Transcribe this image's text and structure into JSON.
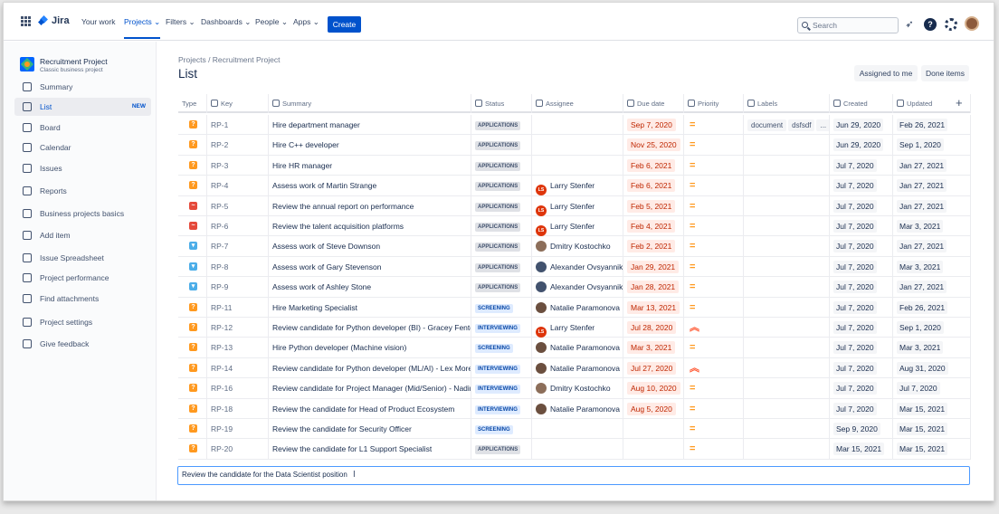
{
  "nav": {
    "logo": "Jira",
    "items": [
      {
        "label": "Your work",
        "active": false
      },
      {
        "label": "Projects ⌄",
        "active": true
      },
      {
        "label": "Filters ⌄",
        "active": false
      },
      {
        "label": "Dashboards ⌄",
        "active": false
      },
      {
        "label": "People ⌄",
        "active": false
      },
      {
        "label": "Apps ⌄",
        "active": false
      }
    ],
    "create_label": "Create",
    "search_placeholder": "Search"
  },
  "sidebar": {
    "project_name": "Recruitment Project",
    "project_type": "Classic business project",
    "items": [
      {
        "label": "Summary",
        "icon": "summary-icon"
      },
      {
        "label": "List",
        "icon": "list-icon",
        "badge": "NEW",
        "active": true
      },
      {
        "label": "Board",
        "icon": "board-icon"
      },
      {
        "label": "Calendar",
        "icon": "calendar-icon"
      },
      {
        "label": "Issues",
        "icon": "issues-icon"
      },
      {
        "label": "Reports",
        "icon": "reports-icon"
      },
      {
        "label": "Business projects basics",
        "icon": "external-link-icon"
      },
      {
        "label": "Add item",
        "icon": "add-item-icon"
      },
      {
        "label": "Issue Spreadsheet",
        "icon": "spreadsheet-icon"
      },
      {
        "label": "Project performance",
        "icon": "performance-icon"
      },
      {
        "label": "Find attachments",
        "icon": "search-icon"
      },
      {
        "label": "Project settings",
        "icon": "gear-icon"
      },
      {
        "label": "Give feedback",
        "icon": "megaphone-icon"
      }
    ]
  },
  "main": {
    "breadcrumb": "Projects  /  Recruitment Project",
    "title": "List",
    "assigned_btn": "Assigned to me",
    "done_btn": "Done items",
    "new_item_value": "Review the candidate for the Data Scientist position"
  },
  "columns": [
    "Type",
    "Key",
    "Summary",
    "Status",
    "Assignee",
    "Due date",
    "Priority",
    "Labels",
    "Created",
    "Updated"
  ],
  "rows": [
    {
      "type": "orange",
      "key": "RP-1",
      "summary": "Hire department manager",
      "status": "APPLICATIONS",
      "assignee": "",
      "av": "",
      "due": "Sep 7, 2020",
      "prio": "medium",
      "labels": [
        "document",
        "dsfsdf",
        "..."
      ],
      "created": "Jun 29, 2020",
      "updated": "Feb 26, 2021"
    },
    {
      "type": "orange",
      "key": "RP-2",
      "summary": "Hire C++ developer",
      "status": "APPLICATIONS",
      "assignee": "",
      "av": "",
      "due": "Nov 25, 2020",
      "prio": "medium",
      "labels": [],
      "created": "Jun 29, 2020",
      "updated": "Sep 1, 2020"
    },
    {
      "type": "orange",
      "key": "RP-3",
      "summary": "Hire HR manager",
      "status": "APPLICATIONS",
      "assignee": "",
      "av": "",
      "due": "Feb 6, 2021",
      "prio": "medium",
      "labels": [],
      "created": "Jul 7, 2020",
      "updated": "Jan 27, 2021"
    },
    {
      "type": "orange",
      "key": "RP-4",
      "summary": "Assess work of Martin Strange",
      "status": "APPLICATIONS",
      "assignee": "Larry Stenfer",
      "av": "ls",
      "due": "Feb 6, 2021",
      "prio": "medium",
      "labels": [],
      "created": "Jul 7, 2020",
      "updated": "Jan 27, 2021"
    },
    {
      "type": "red",
      "key": "RP-5",
      "summary": "Review the annual report on performance",
      "status": "APPLICATIONS",
      "assignee": "Larry Stenfer",
      "av": "ls",
      "due": "Feb 5, 2021",
      "prio": "medium",
      "labels": [],
      "created": "Jul 7, 2020",
      "updated": "Jan 27, 2021"
    },
    {
      "type": "red",
      "key": "RP-6",
      "summary": "Review the talent acquisition platforms",
      "status": "APPLICATIONS",
      "assignee": "Larry Stenfer",
      "av": "ls",
      "due": "Feb 4, 2021",
      "prio": "medium",
      "labels": [],
      "created": "Jul 7, 2020",
      "updated": "Mar 3, 2021"
    },
    {
      "type": "blue",
      "key": "RP-7",
      "summary": "Assess work of Steve Downson",
      "status": "APPLICATIONS",
      "assignee": "Dmitry Kostochko",
      "av": "dk",
      "due": "Feb 2, 2021",
      "prio": "medium",
      "labels": [],
      "created": "Jul 7, 2020",
      "updated": "Jan 27, 2021"
    },
    {
      "type": "blue",
      "key": "RP-8",
      "summary": "Assess work of Gary Stevenson",
      "status": "APPLICATIONS",
      "assignee": "Alexander Ovsyannikov",
      "av": "ao",
      "due": "Jan 29, 2021",
      "prio": "medium",
      "labels": [],
      "created": "Jul 7, 2020",
      "updated": "Mar 3, 2021"
    },
    {
      "type": "blue",
      "key": "RP-9",
      "summary": "Assess work of Ashley Stone",
      "status": "APPLICATIONS",
      "assignee": "Alexander Ovsyannikov",
      "av": "ao",
      "due": "Jan 28, 2021",
      "prio": "medium",
      "labels": [],
      "created": "Jul 7, 2020",
      "updated": "Jan 27, 2021"
    },
    {
      "type": "orange",
      "key": "RP-11",
      "summary": "Hire Marketing Specialist",
      "status": "SCREENING",
      "assignee": "Natalie Paramonova",
      "av": "np",
      "due": "Mar 13, 2021",
      "prio": "medium",
      "labels": [],
      "created": "Jul 7, 2020",
      "updated": "Feb 26, 2021"
    },
    {
      "type": "orange",
      "key": "RP-12",
      "summary": "Review candidate for Python developer (BI) - Gracey Fenton",
      "status": "INTERVIEWING",
      "assignee": "Larry Stenfer",
      "av": "ls",
      "due": "Jul 28, 2020",
      "prio": "high",
      "labels": [],
      "created": "Jul 7, 2020",
      "updated": "Sep 1, 2020"
    },
    {
      "type": "orange",
      "key": "RP-13",
      "summary": "Hire Python developer (Machine vision)",
      "status": "SCREENING",
      "assignee": "Natalie Paramonova",
      "av": "np",
      "due": "Mar 3, 2021",
      "prio": "medium",
      "labels": [],
      "created": "Jul 7, 2020",
      "updated": "Mar 3, 2021"
    },
    {
      "type": "orange",
      "key": "RP-14",
      "summary": "Review candidate for Python developer (ML/AI) - Lex Moreno",
      "status": "INTERVIEWING",
      "assignee": "Natalie Paramonova",
      "av": "np",
      "due": "Jul 27, 2020",
      "prio": "high",
      "labels": [],
      "created": "Jul 7, 2020",
      "updated": "Aug 31, 2020"
    },
    {
      "type": "orange",
      "key": "RP-16",
      "summary": "Review candidate for Project Manager (Mid/Senior) - Nadine ...",
      "status": "INTERVIEWING",
      "assignee": "Dmitry Kostochko",
      "av": "dk",
      "due": "Aug 10, 2020",
      "prio": "medium",
      "labels": [],
      "created": "Jul 7, 2020",
      "updated": "Jul 7, 2020"
    },
    {
      "type": "orange",
      "key": "RP-18",
      "summary": "Review the candidate for Head of Product Ecosystem",
      "status": "INTERVIEWING",
      "assignee": "Natalie Paramonova",
      "av": "np",
      "due": "Aug 5, 2020",
      "prio": "medium",
      "labels": [],
      "created": "Jul 7, 2020",
      "updated": "Mar 15, 2021"
    },
    {
      "type": "orange",
      "key": "RP-19",
      "summary": "Review the candidate for Security Officer",
      "status": "SCREENING",
      "assignee": "",
      "av": "",
      "due": "",
      "prio": "medium",
      "labels": [],
      "created": "Sep 9, 2020",
      "updated": "Mar 15, 2021"
    },
    {
      "type": "orange",
      "key": "RP-20",
      "summary": "Review the candidate for L1 Support Specialist",
      "status": "APPLICATIONS",
      "assignee": "",
      "av": "",
      "due": "",
      "prio": "medium",
      "labels": [],
      "created": "Mar 15, 2021",
      "updated": "Mar 15, 2021"
    }
  ]
}
